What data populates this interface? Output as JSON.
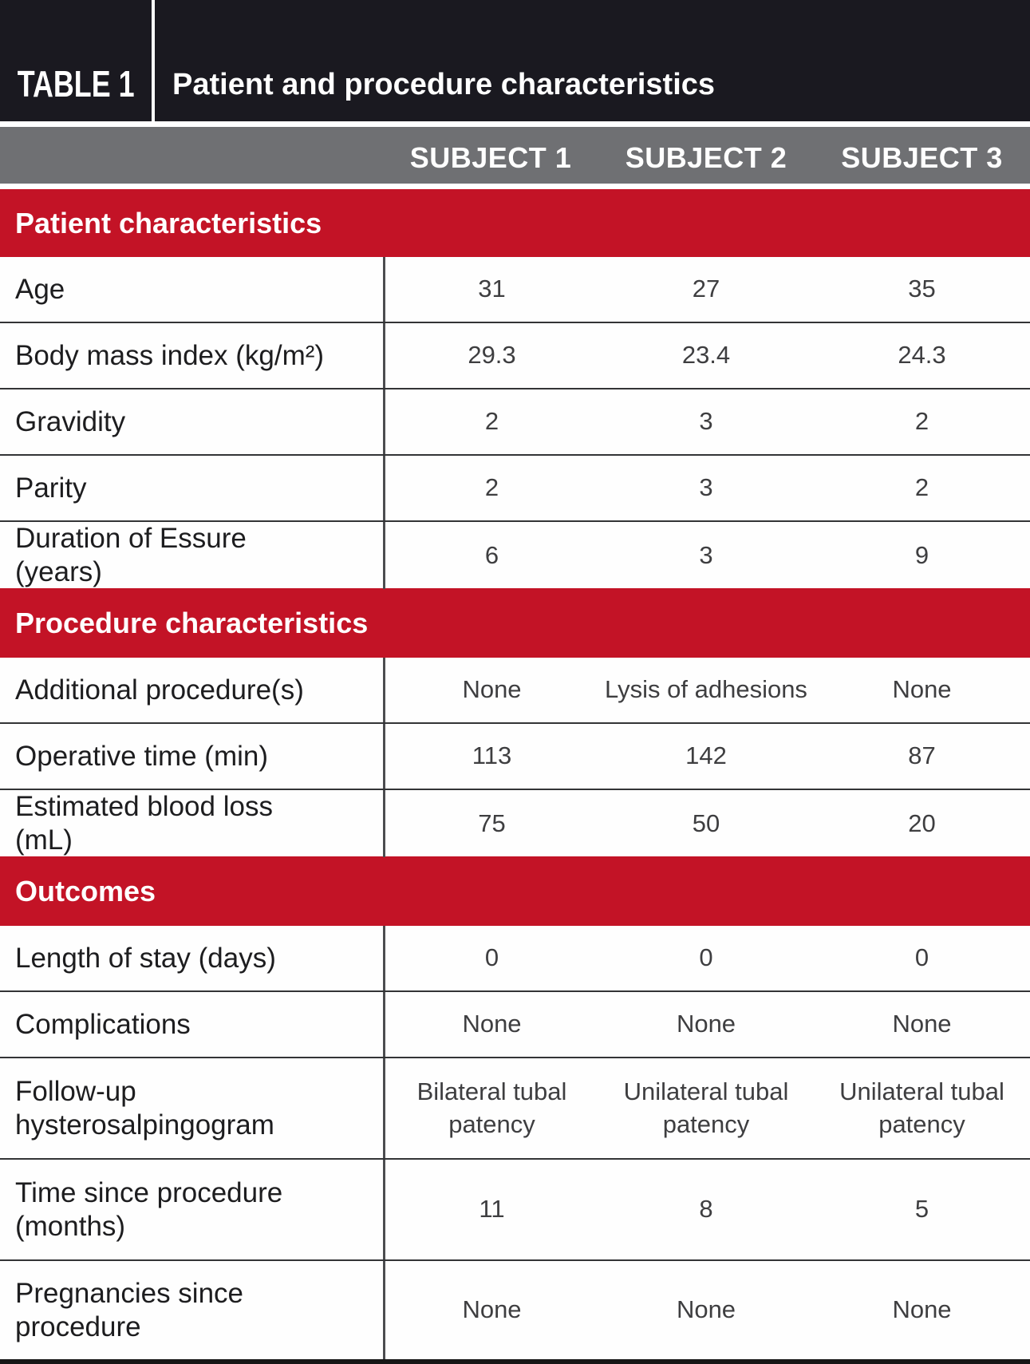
{
  "table": {
    "label": "TABLE 1",
    "title": "Patient and procedure characteristics",
    "columns": [
      "SUBJECT 1",
      "SUBJECT 2",
      "SUBJECT 3"
    ],
    "sections": [
      {
        "header": "Patient characteristics",
        "rows": [
          {
            "label": "Age",
            "values": [
              "31",
              "27",
              "35"
            ]
          },
          {
            "label": "Body mass index (kg/m²)",
            "values": [
              "29.3",
              "23.4",
              "24.3"
            ]
          },
          {
            "label": "Gravidity",
            "values": [
              "2",
              "3",
              "2"
            ]
          },
          {
            "label": "Parity",
            "values": [
              "2",
              "3",
              "2"
            ]
          },
          {
            "label": "Duration of Essure (years)",
            "values": [
              "6",
              "3",
              "9"
            ]
          }
        ]
      },
      {
        "header": "Procedure characteristics",
        "rows": [
          {
            "label": "Additional procedure(s)",
            "values": [
              "None",
              "Lysis of adhesions",
              "None"
            ]
          },
          {
            "label": "Operative time (min)",
            "values": [
              "113",
              "142",
              "87"
            ]
          },
          {
            "label": "Estimated blood loss (mL)",
            "values": [
              "75",
              "50",
              "20"
            ]
          }
        ]
      },
      {
        "header": "Outcomes",
        "rows": [
          {
            "label": "Length of stay (days)",
            "values": [
              "0",
              "0",
              "0"
            ]
          },
          {
            "label": "Complications",
            "values": [
              "None",
              "None",
              "None"
            ]
          },
          {
            "label": "Follow-up hysterosalpingogram",
            "values": [
              "Bilateral tubal patency",
              "Unilateral tubal patency",
              "Unilateral tubal patency"
            ]
          },
          {
            "label": "Time since procedure (months)",
            "values": [
              "11",
              "8",
              "5"
            ]
          },
          {
            "label": "Pregnancies since procedure",
            "values": [
              "None",
              "None",
              "None"
            ]
          }
        ]
      }
    ],
    "colors": {
      "accent_red": "#c31326",
      "header_gray": "#6f7073",
      "banner_black": "#1a1920"
    }
  }
}
